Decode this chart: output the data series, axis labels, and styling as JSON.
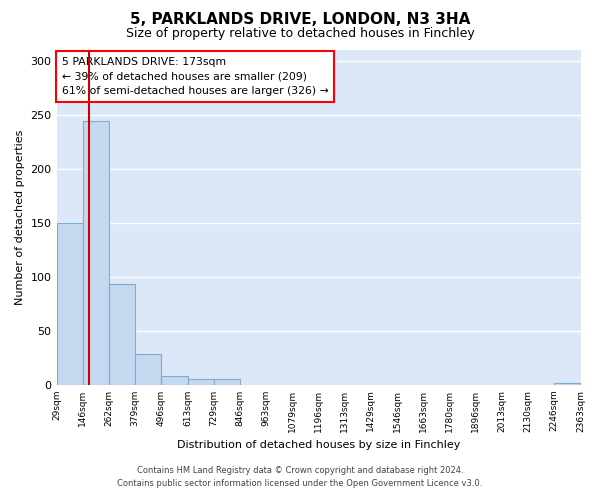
{
  "title": "5, PARKLANDS DRIVE, LONDON, N3 3HA",
  "subtitle": "Size of property relative to detached houses in Finchley",
  "xlabel": "Distribution of detached houses by size in Finchley",
  "ylabel": "Number of detached properties",
  "bar_color": "#c5d8f0",
  "bar_edge_color": "#7badd4",
  "bin_edges": [
    29,
    146,
    262,
    379,
    496,
    613,
    729,
    846,
    963,
    1079,
    1196,
    1313,
    1429,
    1546,
    1663,
    1780,
    1896,
    2013,
    2130,
    2246,
    2363
  ],
  "bin_labels": [
    "29sqm",
    "146sqm",
    "262sqm",
    "379sqm",
    "496sqm",
    "613sqm",
    "729sqm",
    "846sqm",
    "963sqm",
    "1079sqm",
    "1196sqm",
    "1313sqm",
    "1429sqm",
    "1546sqm",
    "1663sqm",
    "1780sqm",
    "1896sqm",
    "2013sqm",
    "2130sqm",
    "2246sqm",
    "2363sqm"
  ],
  "bar_heights": [
    150,
    244,
    93,
    28,
    8,
    5,
    5,
    0,
    0,
    0,
    0,
    0,
    0,
    0,
    0,
    0,
    0,
    0,
    0,
    2
  ],
  "property_size": 173,
  "annotation_text": "5 PARKLANDS DRIVE: 173sqm\n← 39% of detached houses are smaller (209)\n61% of semi-detached houses are larger (326) →",
  "annotation_box_color": "white",
  "annotation_box_edge_color": "red",
  "red_line_color": "#cc0000",
  "footnote_line1": "Contains HM Land Registry data © Crown copyright and database right 2024.",
  "footnote_line2": "Contains public sector information licensed under the Open Government Licence v3.0.",
  "ylim": [
    0,
    310
  ],
  "plot_bg_color": "#dce8f8",
  "fig_bg_color": "#ffffff",
  "grid_color": "#ffffff",
  "yticks": [
    0,
    50,
    100,
    150,
    200,
    250,
    300
  ]
}
